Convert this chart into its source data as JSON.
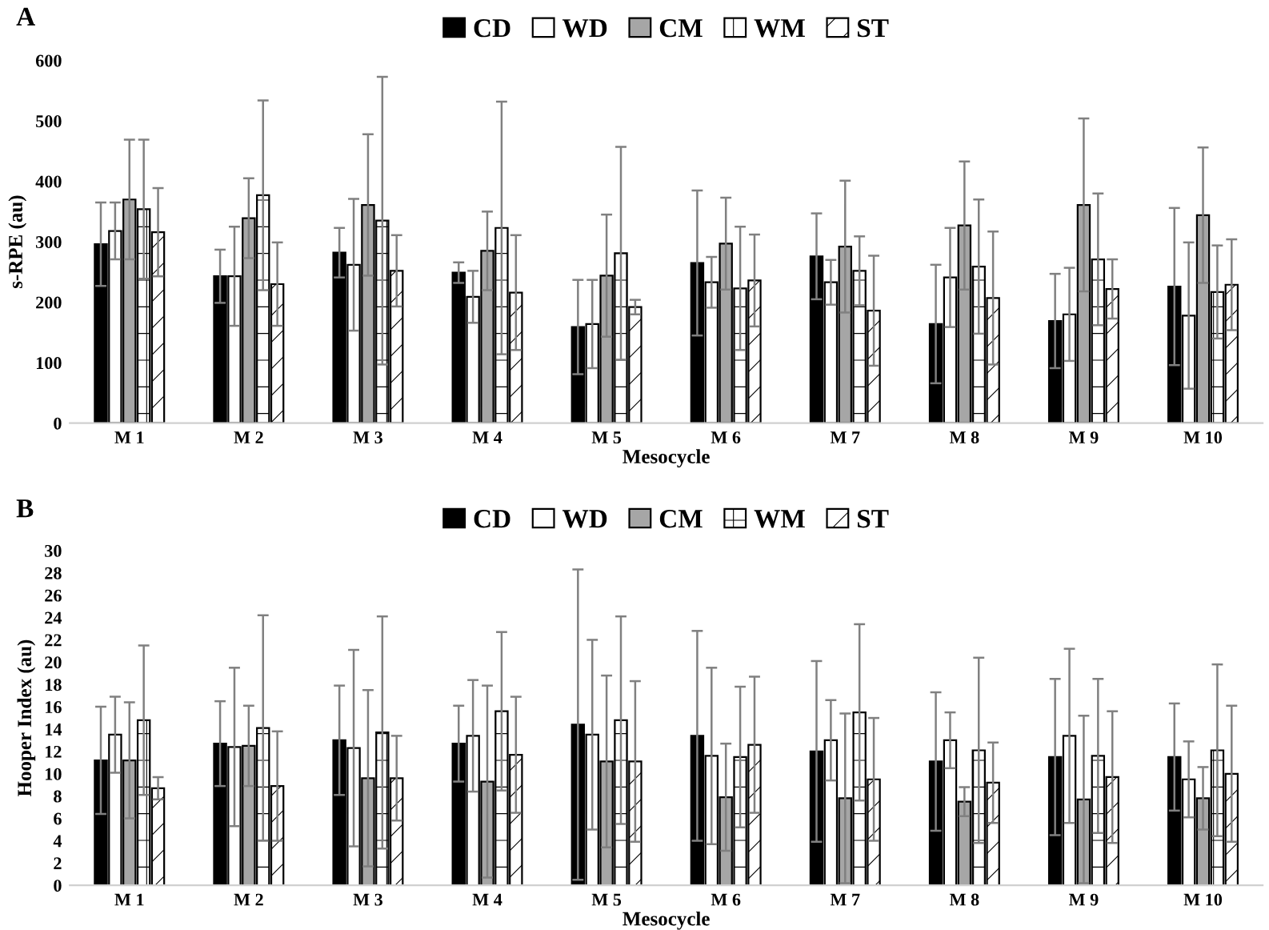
{
  "chart_data": [
    {
      "type": "bar",
      "title": "A",
      "xlabel": "Mesocycle",
      "ylabel": "s-RPE (au)",
      "categories": [
        "M 1",
        "M 2",
        "M 3",
        "M 4",
        "M 5",
        "M 6",
        "M 7",
        "M 8",
        "M 9",
        "M 10"
      ],
      "ylim": [
        0,
        600
      ],
      "yticks": [
        0,
        100,
        200,
        300,
        400,
        500,
        600
      ],
      "grid": false,
      "legend": "top",
      "series": [
        {
          "name": "CD",
          "color": "#000000",
          "values": [
            296,
            243,
            282,
            249,
            159,
            265,
            276,
            164,
            169,
            226
          ],
          "errors": [
            69,
            44,
            41,
            17,
            78,
            120,
            71,
            98,
            78,
            130
          ]
        },
        {
          "name": "WD",
          "color": "#ffffff",
          "values": [
            318,
            243,
            262,
            209,
            164,
            233,
            233,
            241,
            180,
            178
          ],
          "errors": [
            47,
            82,
            109,
            43,
            73,
            42,
            37,
            82,
            77,
            121
          ]
        },
        {
          "name": "CM",
          "color": "#a6a6a6",
          "values": [
            370,
            339,
            361,
            285,
            244,
            297,
            292,
            327,
            361,
            344
          ],
          "errors": [
            99,
            66,
            117,
            65,
            101,
            76,
            109,
            106,
            143,
            112
          ]
        },
        {
          "name": "WM",
          "color": "#ffffff",
          "values": [
            354,
            377,
            335,
            323,
            281,
            223,
            252,
            259,
            271,
            217
          ],
          "errors": [
            115,
            157,
            238,
            209,
            176,
            102,
            57,
            111,
            109,
            77
          ]
        },
        {
          "name": "ST",
          "color": "#ffffff",
          "values": [
            316,
            230,
            252,
            216,
            192,
            236,
            186,
            207,
            222,
            229
          ],
          "errors": [
            73,
            69,
            59,
            95,
            12,
            76,
            91,
            110,
            49,
            75
          ]
        }
      ]
    },
    {
      "type": "bar",
      "title": "B",
      "xlabel": "Mesocycle",
      "ylabel": "Hooper Index (au)",
      "categories": [
        "M 1",
        "M 2",
        "M 3",
        "M 4",
        "M 5",
        "M 6",
        "M 7",
        "M 8",
        "M 9",
        "M 10"
      ],
      "ylim": [
        0,
        30
      ],
      "yticks": [
        0,
        2,
        4,
        6,
        8,
        10,
        12,
        14,
        16,
        18,
        20,
        22,
        24,
        26,
        28,
        30
      ],
      "grid": false,
      "legend": "top",
      "series": [
        {
          "name": "CD",
          "color": "#000000",
          "values": [
            11.2,
            12.7,
            13.0,
            12.7,
            14.4,
            13.4,
            12.0,
            11.1,
            11.5,
            11.5
          ],
          "errors": [
            4.8,
            3.8,
            4.9,
            3.4,
            13.9,
            9.4,
            8.1,
            6.2,
            7.0,
            4.8
          ]
        },
        {
          "name": "WD",
          "color": "#ffffff",
          "values": [
            13.5,
            12.4,
            12.3,
            13.4,
            13.5,
            11.6,
            13.0,
            13.0,
            13.4,
            9.5
          ],
          "errors": [
            3.4,
            7.1,
            8.8,
            5.0,
            8.5,
            7.9,
            3.6,
            2.5,
            7.8,
            3.4
          ]
        },
        {
          "name": "CM",
          "color": "#a6a6a6",
          "values": [
            11.2,
            12.5,
            9.6,
            9.3,
            11.1,
            7.9,
            7.8,
            7.5,
            7.7,
            7.8
          ],
          "errors": [
            5.2,
            3.6,
            7.9,
            8.6,
            7.7,
            4.8,
            7.6,
            1.3,
            7.5,
            2.8
          ]
        },
        {
          "name": "WM",
          "color": "#ffffff",
          "values": [
            14.8,
            14.1,
            13.7,
            15.6,
            14.8,
            11.5,
            15.5,
            12.1,
            11.6,
            12.1
          ],
          "errors": [
            6.7,
            10.1,
            10.4,
            7.1,
            9.3,
            6.3,
            7.9,
            8.3,
            6.9,
            7.7
          ]
        },
        {
          "name": "ST",
          "color": "#ffffff",
          "values": [
            8.7,
            8.9,
            9.6,
            11.7,
            11.1,
            12.6,
            9.5,
            9.2,
            9.7,
            10.0
          ],
          "errors": [
            1.0,
            4.9,
            3.8,
            5.2,
            7.2,
            6.1,
            5.5,
            3.6,
            5.9,
            6.1
          ]
        }
      ]
    }
  ]
}
